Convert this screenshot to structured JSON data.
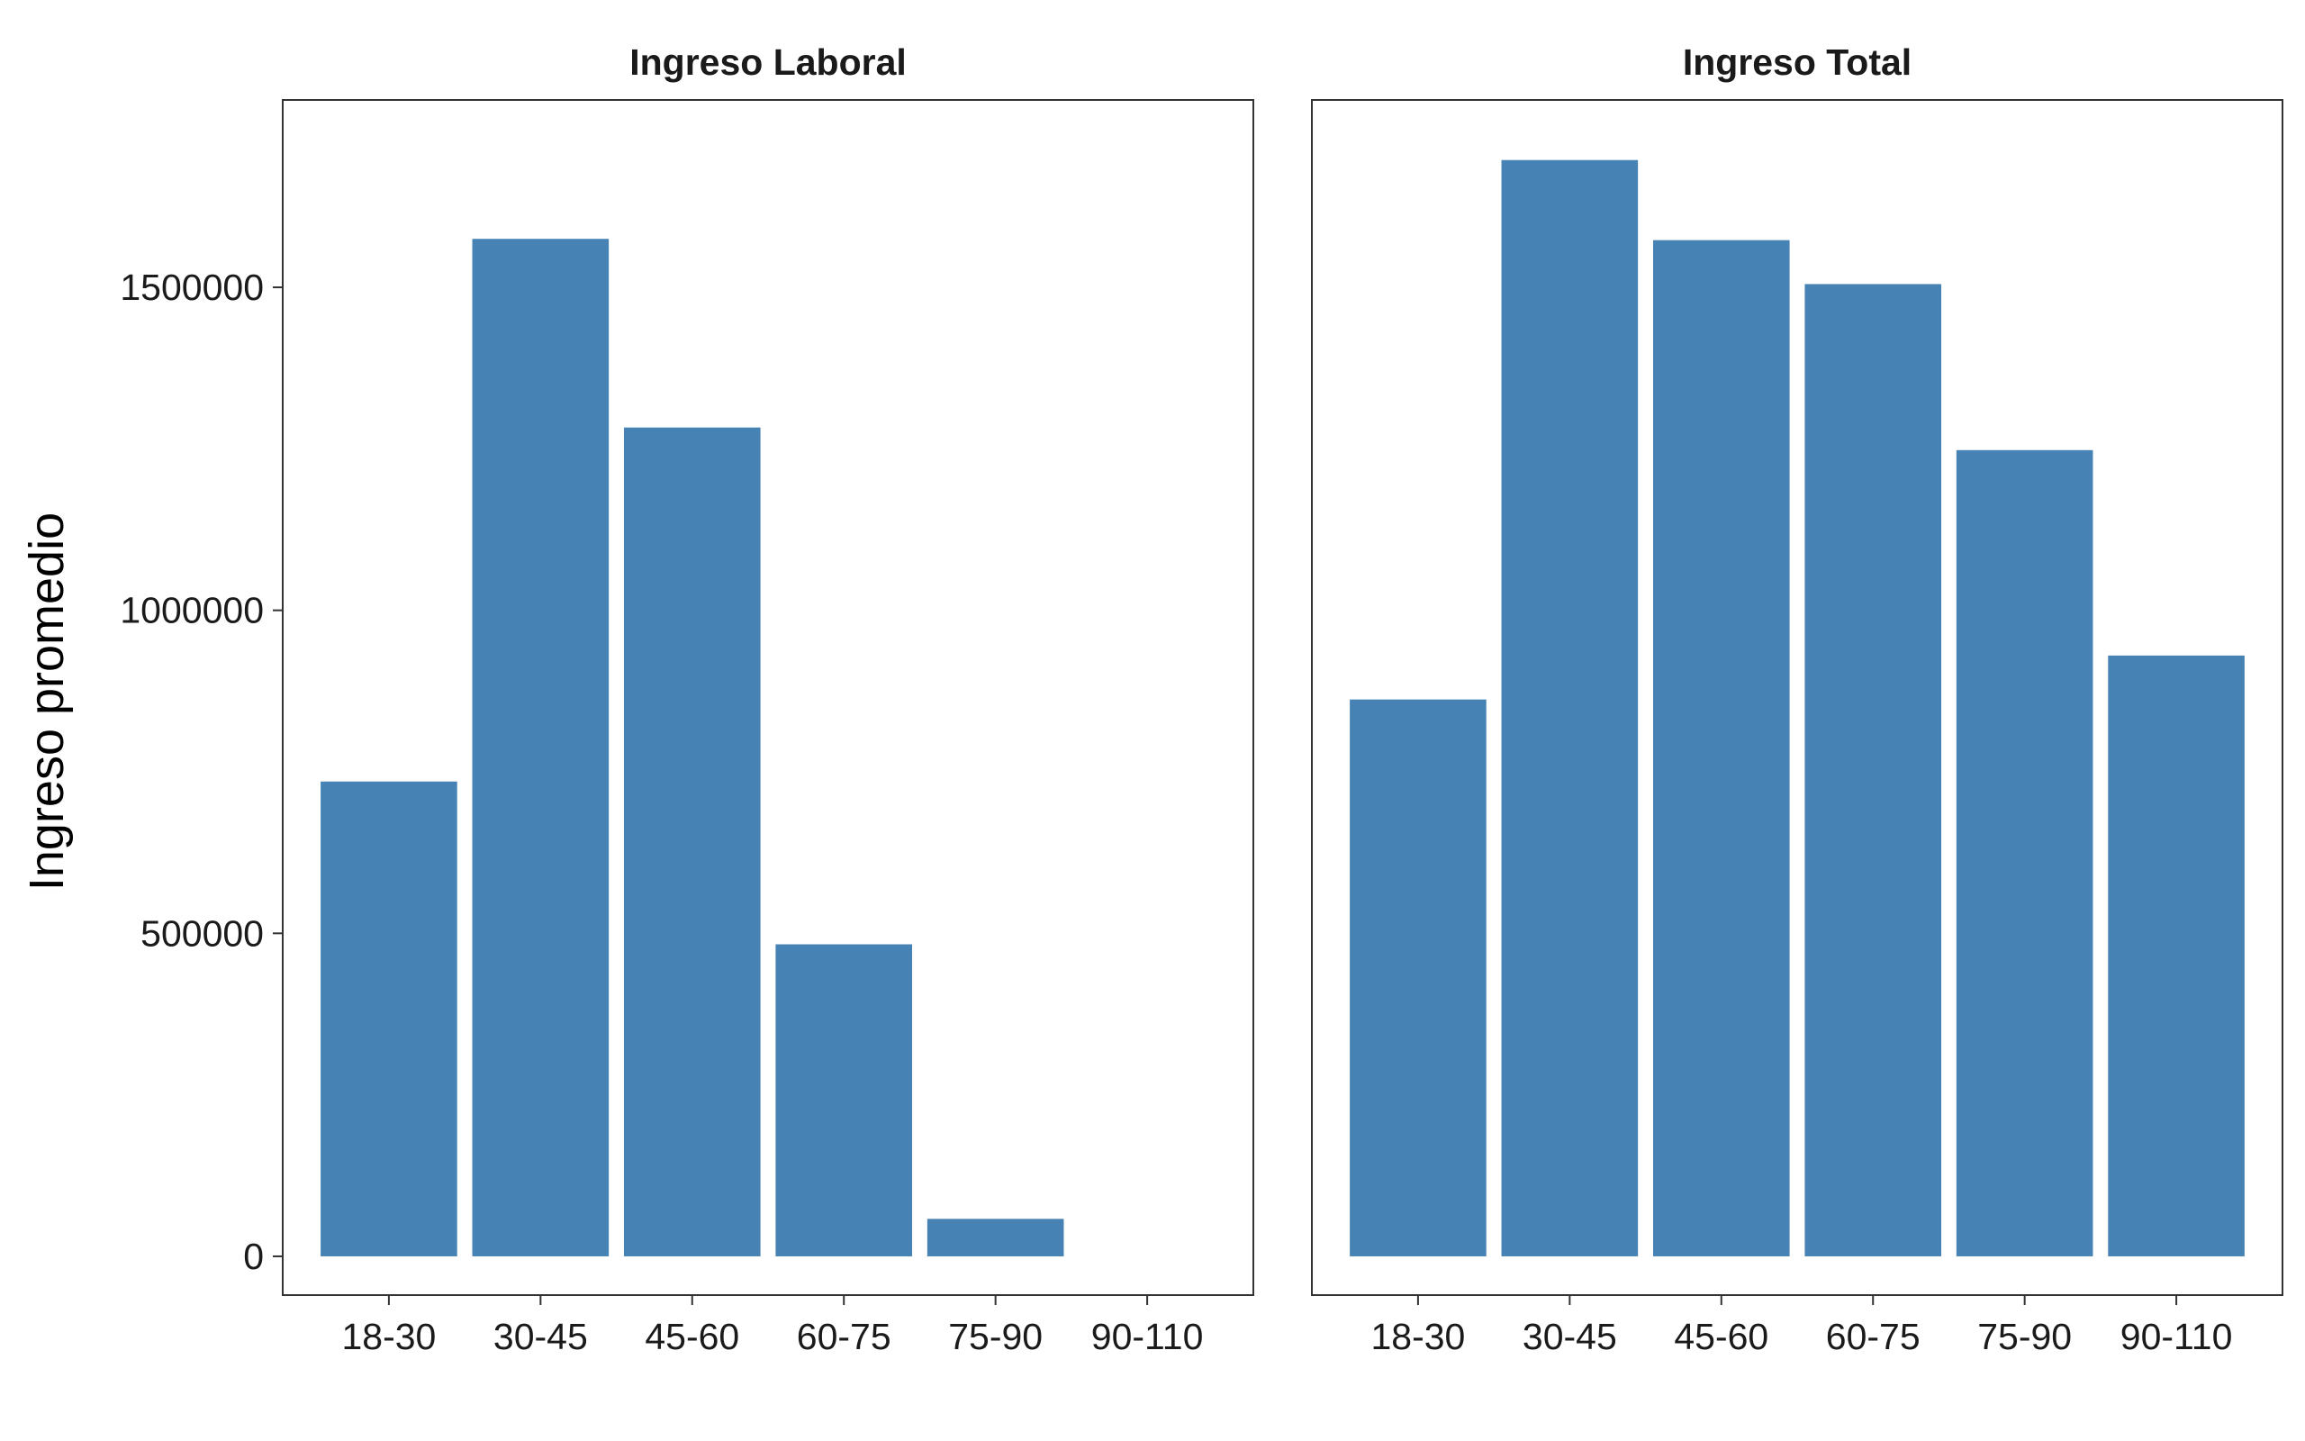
{
  "chart_data": {
    "type": "bar",
    "ylabel": "Ingreso promedio",
    "ylim": [
      -60000,
      1790000
    ],
    "yticks": [
      0,
      500000,
      1000000,
      1500000
    ],
    "ytick_labels": [
      "0",
      "500000",
      "1000000",
      "1500000"
    ],
    "bar_color": "#4682B4",
    "categories": [
      "18-30",
      "30-45",
      "45-60",
      "60-75",
      "75-90",
      "90-110"
    ],
    "panels": [
      {
        "title": "Ingreso Laboral",
        "values": [
          735000,
          1575000,
          1283000,
          483000,
          58000,
          0
        ]
      },
      {
        "title": "Ingreso Total",
        "values": [
          862000,
          1697000,
          1573000,
          1505000,
          1248000,
          930000
        ]
      }
    ]
  }
}
